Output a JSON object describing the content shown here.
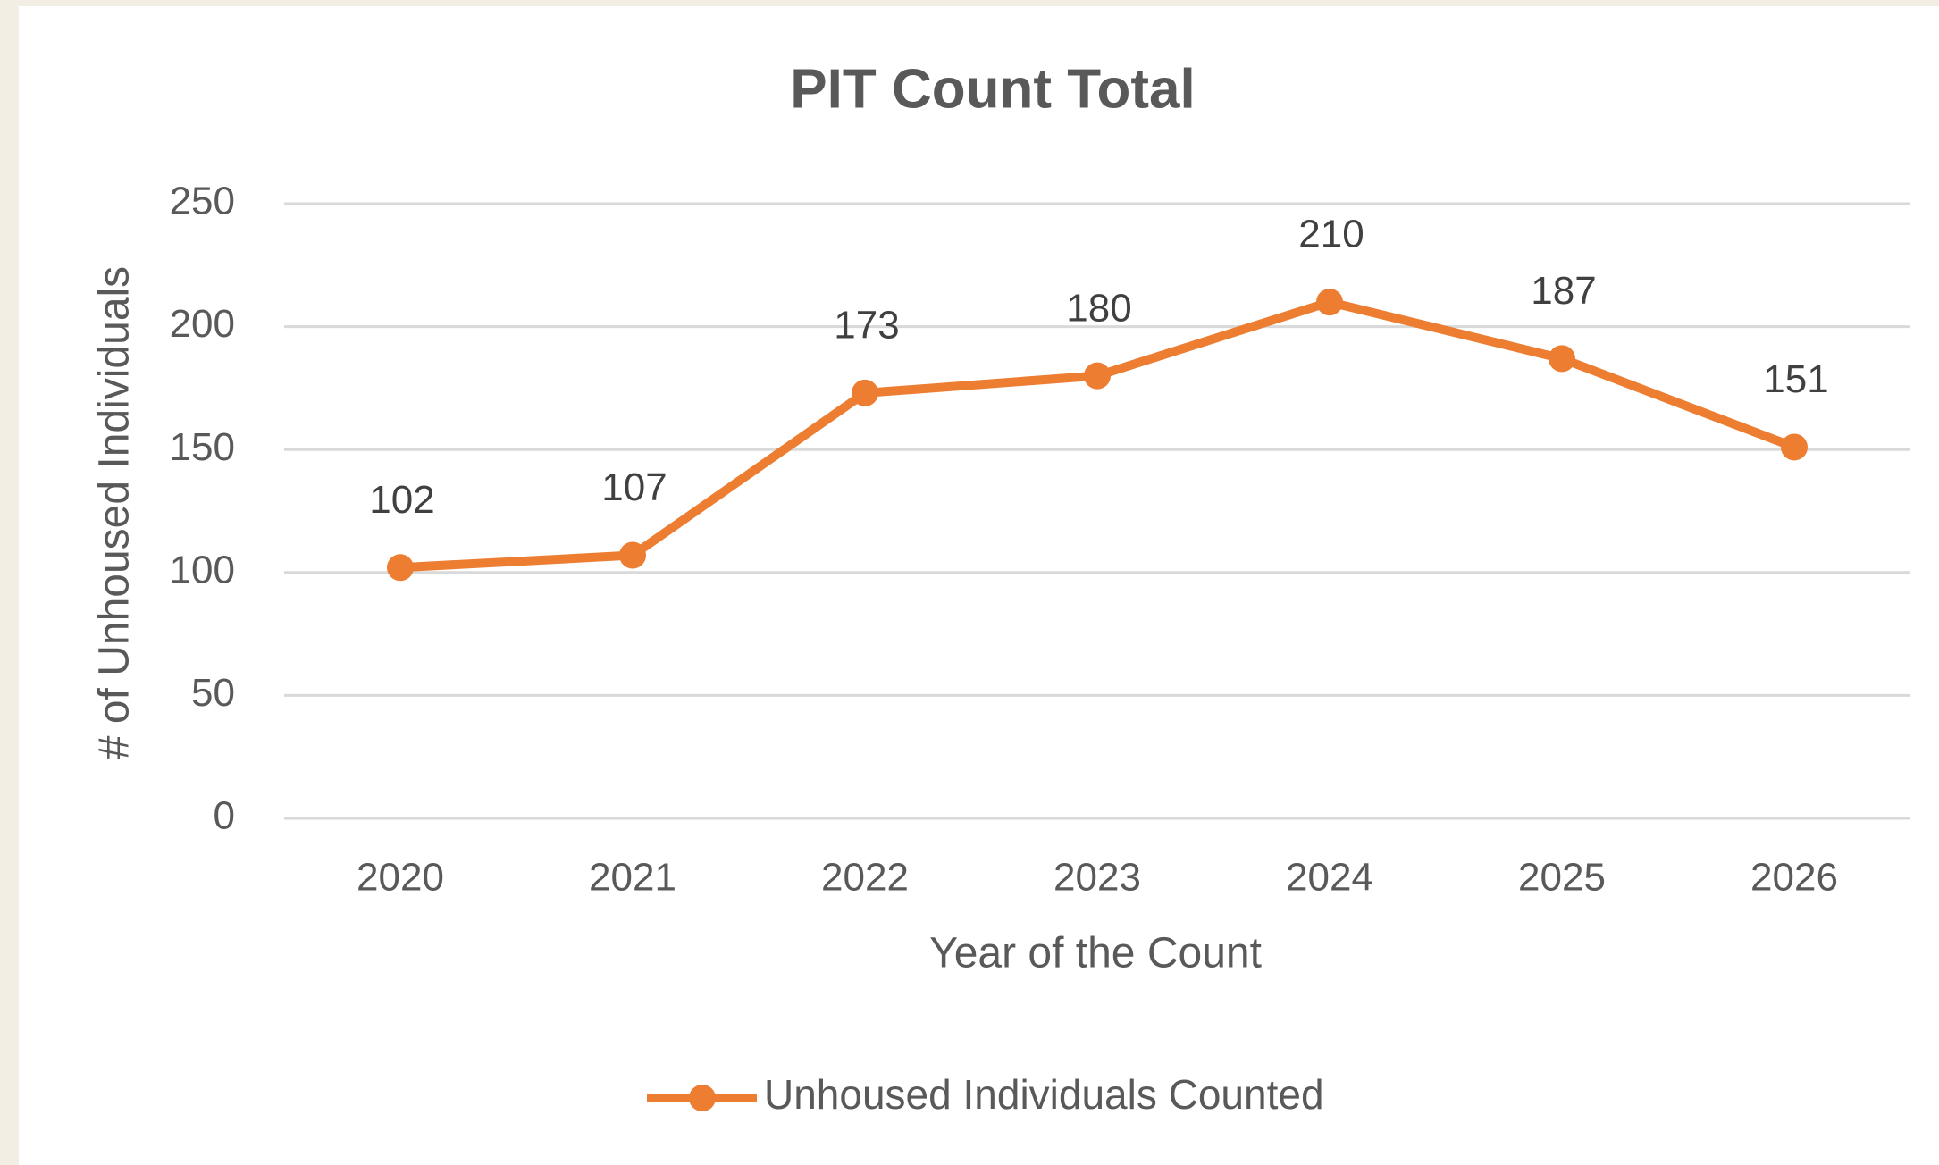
{
  "chart_data": {
    "type": "line",
    "title": "PIT Count Total",
    "x_label": "Year of the Count",
    "y_label": "# of Unhoused Individuals",
    "categories": [
      "2020",
      "2021",
      "2022",
      "2023",
      "2024",
      "2025",
      "2026"
    ],
    "series": [
      {
        "name": "Unhoused Individuals Counted",
        "color": "#ed7d31",
        "values": [
          102,
          107,
          173,
          180,
          210,
          187,
          151
        ]
      }
    ],
    "ylim": [
      0,
      250
    ],
    "yticks": [
      0,
      50,
      100,
      150,
      200,
      250
    ],
    "grid": true,
    "legend": "bottom"
  }
}
